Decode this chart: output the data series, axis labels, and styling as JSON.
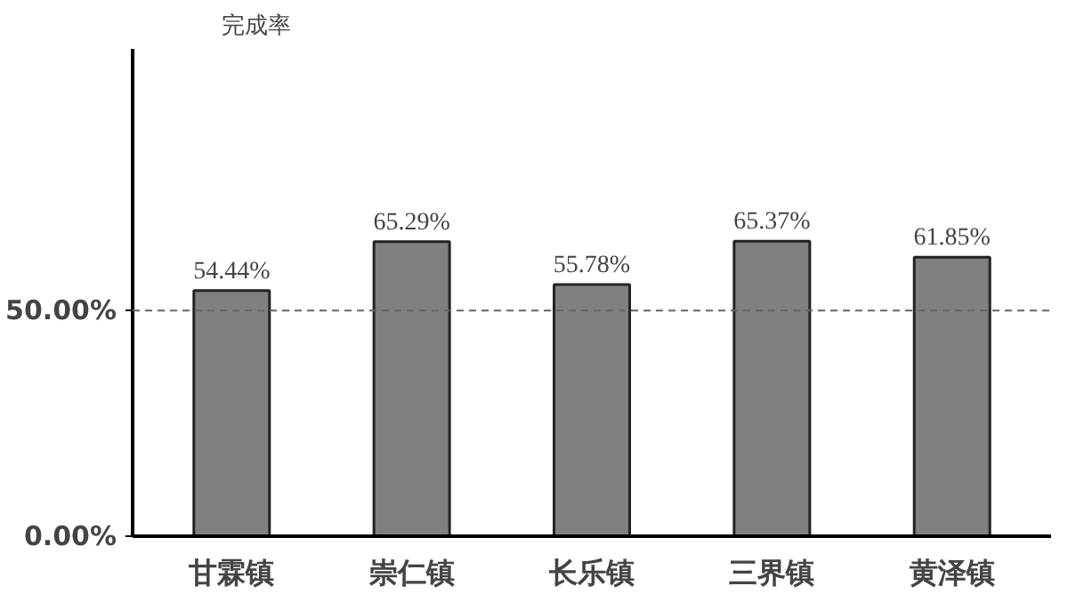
{
  "chart_data": {
    "type": "bar",
    "ylabel": "完成率",
    "categories": [
      "甘霖镇",
      "崇仁镇",
      "长乐镇",
      "三界镇",
      "黄泽镇"
    ],
    "values": [
      54.44,
      65.29,
      55.78,
      65.37,
      61.85
    ],
    "value_labels": [
      "54.44%",
      "65.29%",
      "55.78%",
      "65.37%",
      "61.85%"
    ],
    "color": "#808080",
    "ylim": [
      0,
      108
    ],
    "yticks": [
      {
        "value": 0,
        "label": "0.00%"
      },
      {
        "value": 50,
        "label": "50.00%"
      }
    ],
    "ref_lines": [
      {
        "axis": "y",
        "value": 50,
        "line_style": "dashed",
        "color": "#666666"
      }
    ],
    "grid": false
  }
}
